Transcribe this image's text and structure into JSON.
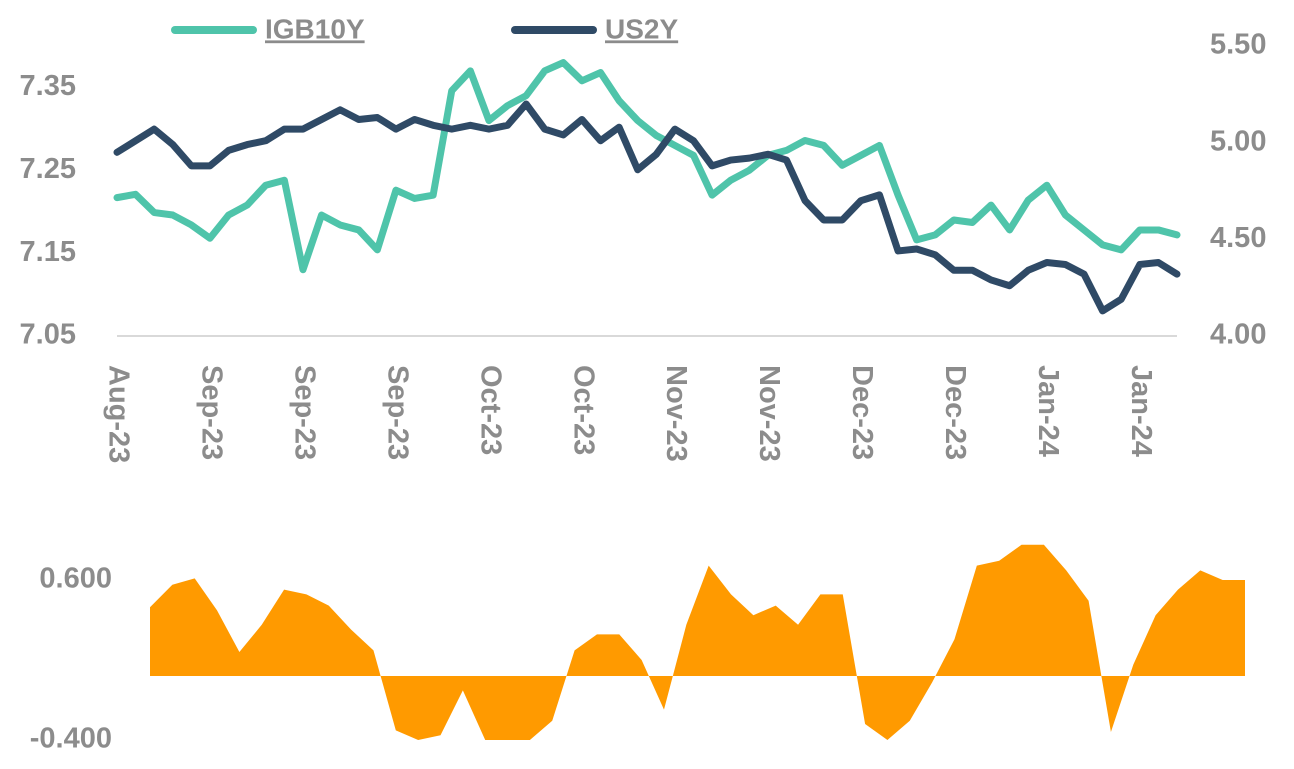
{
  "chart_data": [
    {
      "type": "line",
      "categories": [
        "Aug-23",
        null,
        null,
        null,
        null,
        "Sep-23",
        null,
        null,
        null,
        null,
        "Sep-23",
        null,
        null,
        null,
        null,
        "Sep-23",
        null,
        null,
        null,
        null,
        "Oct-23",
        null,
        null,
        null,
        null,
        "Oct-23",
        null,
        null,
        null,
        null,
        "Nov-23",
        null,
        null,
        null,
        null,
        "Nov-23",
        null,
        null,
        null,
        null,
        "Dec-23",
        null,
        null,
        null,
        null,
        "Dec-23",
        null,
        null,
        null,
        null,
        "Jan-24",
        null,
        null,
        null,
        null,
        "Jan-24",
        null,
        null
      ],
      "series": [
        {
          "name": "IGB10Y",
          "color": "#4fc4aa",
          "values": [
            7.217,
            7.221,
            7.199,
            7.196,
            7.184,
            7.168,
            7.196,
            7.208,
            7.232,
            7.238,
            7.13,
            7.196,
            7.184,
            7.178,
            7.154,
            7.226,
            7.216,
            7.22,
            7.346,
            7.37,
            7.31,
            7.328,
            7.34,
            7.37,
            7.38,
            7.358,
            7.368,
            7.334,
            7.31,
            7.292,
            7.28,
            7.268,
            7.22,
            7.238,
            7.25,
            7.268,
            7.274,
            7.286,
            7.28,
            7.256,
            7.268,
            7.28,
            7.22,
            7.166,
            7.172,
            7.19,
            7.187,
            7.208,
            7.178,
            7.214,
            7.232,
            7.196,
            7.178,
            7.16,
            7.154,
            7.178,
            7.178,
            7.172
          ]
        },
        {
          "name": "US2Y",
          "color": "#2f4a66",
          "axis": "y2",
          "values": [
            4.95,
            5.01,
            5.07,
            4.99,
            4.88,
            4.88,
            4.96,
            4.99,
            5.01,
            5.07,
            5.07,
            5.12,
            5.17,
            5.12,
            5.13,
            5.07,
            5.12,
            5.09,
            5.07,
            5.09,
            5.07,
            5.09,
            5.2,
            5.07,
            5.04,
            5.12,
            5.01,
            5.08,
            4.86,
            4.94,
            5.07,
            5.01,
            4.88,
            4.91,
            4.92,
            4.94,
            4.91,
            4.7,
            4.6,
            4.6,
            4.7,
            4.73,
            4.44,
            4.45,
            4.42,
            4.34,
            4.34,
            4.29,
            4.26,
            4.34,
            4.38,
            4.37,
            4.32,
            4.13,
            4.19,
            4.37,
            4.38,
            4.32
          ]
        }
      ],
      "ylim": [
        7.05,
        7.4
      ],
      "yticks": [
        7.05,
        7.15,
        7.25,
        7.35
      ],
      "y2lim": [
        4.0,
        5.5
      ],
      "y2ticks": [
        {
          "value": 4,
          "label": "4.00"
        },
        {
          "value": 4.5,
          "label": "4.50"
        },
        {
          "value": 5,
          "label": "5.00"
        },
        {
          "value": 5.5,
          "label": "5.50"
        }
      ],
      "legend": "top"
    },
    {
      "type": "area",
      "color": "#ff9a00",
      "values": [
        0.43,
        0.57,
        0.61,
        0.41,
        0.15,
        0.32,
        0.54,
        0.51,
        0.44,
        0.29,
        0.16,
        -0.34,
        -0.4,
        -0.37,
        -0.09,
        -0.4,
        -0.4,
        -0.4,
        -0.28,
        0.16,
        0.26,
        0.26,
        0.1,
        -0.21,
        0.32,
        0.69,
        0.51,
        0.38,
        0.44,
        0.32,
        0.51,
        0.51,
        -0.3,
        -0.4,
        -0.28,
        -0.04,
        0.23,
        0.69,
        0.72,
        0.82,
        0.82,
        0.66,
        0.47,
        -0.35,
        0.07,
        0.38,
        0.54,
        0.66,
        0.6,
        0.6
      ],
      "ylim": [
        -0.4,
        0.85
      ],
      "yticks": [
        {
          "value": -0.4,
          "label": "-0.400"
        },
        {
          "value": 0.6,
          "label": "0.600"
        }
      ]
    }
  ]
}
